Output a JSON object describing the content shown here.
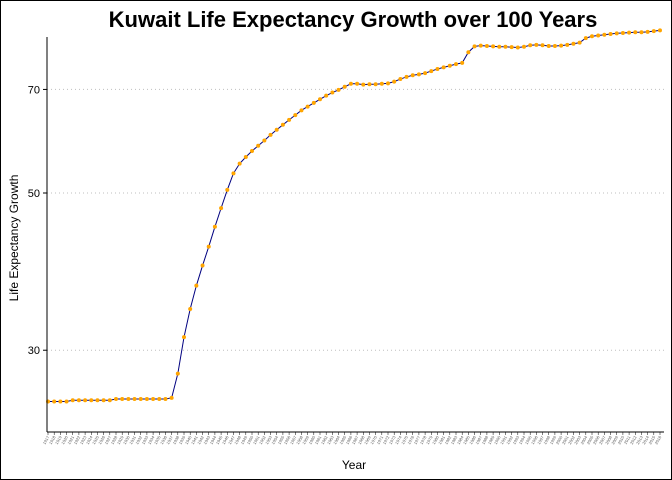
{
  "chart_data": {
    "type": "line",
    "title": "Kuwait Life Expectancy Growth over 100 Years",
    "xlabel": "Year",
    "ylabel": "Life Expectancy Growth",
    "y_ticks": [
      30,
      50,
      70
    ],
    "ylim": [
      23,
      83
    ],
    "y_scale": "log",
    "grid": "horizontal dotted at y ticks",
    "legend": "none",
    "line_color": "#000080",
    "point_color": "#FFA500",
    "x": [
      1917,
      1918,
      1919,
      1920,
      1921,
      1922,
      1923,
      1924,
      1925,
      1926,
      1927,
      1928,
      1929,
      1930,
      1931,
      1932,
      1933,
      1934,
      1935,
      1936,
      1937,
      1938,
      1939,
      1940,
      1941,
      1942,
      1943,
      1944,
      1945,
      1946,
      1947,
      1948,
      1949,
      1950,
      1951,
      1952,
      1953,
      1954,
      1955,
      1956,
      1957,
      1958,
      1959,
      1960,
      1961,
      1962,
      1963,
      1964,
      1965,
      1966,
      1967,
      1968,
      1969,
      1970,
      1971,
      1972,
      1973,
      1974,
      1975,
      1976,
      1977,
      1978,
      1979,
      1980,
      1981,
      1982,
      1983,
      1984,
      1985,
      1986,
      1987,
      1988,
      1989,
      1990,
      1991,
      1992,
      1993,
      1994,
      1995,
      1996,
      1997,
      1998,
      1999,
      2000,
      2001,
      2002,
      2003,
      2004,
      2005,
      2006,
      2007,
      2008,
      2009,
      2010,
      2011,
      2012,
      2013,
      2014,
      2015,
      2016
    ],
    "values": [
      25.4,
      25.4,
      25.4,
      25.4,
      25.5,
      25.5,
      25.5,
      25.5,
      25.5,
      25.5,
      25.5,
      25.6,
      25.6,
      25.6,
      25.6,
      25.6,
      25.6,
      25.6,
      25.6,
      25.6,
      25.7,
      27.8,
      31.3,
      34.3,
      37.0,
      39.5,
      42.0,
      44.8,
      47.6,
      50.5,
      53.3,
      55.0,
      56.2,
      57.3,
      58.3,
      59.3,
      60.4,
      61.4,
      62.4,
      63.4,
      64.4,
      65.4,
      66.2,
      67.0,
      67.8,
      68.6,
      69.3,
      69.9,
      70.6,
      71.3,
      71.3,
      71.1,
      71.2,
      71.2,
      71.3,
      71.4,
      71.8,
      72.4,
      72.9,
      73.3,
      73.5,
      73.8,
      74.3,
      74.8,
      75.2,
      75.6,
      76.0,
      76.3,
      79.0,
      80.5,
      80.7,
      80.6,
      80.5,
      80.4,
      80.4,
      80.3,
      80.2,
      80.4,
      80.8,
      80.9,
      80.8,
      80.6,
      80.6,
      80.7,
      80.9,
      81.2,
      81.5,
      82.7,
      83.2,
      83.4,
      83.6,
      83.8,
      84.0,
      84.1,
      84.2,
      84.3,
      84.3,
      84.4,
      84.6,
      84.8
    ]
  }
}
